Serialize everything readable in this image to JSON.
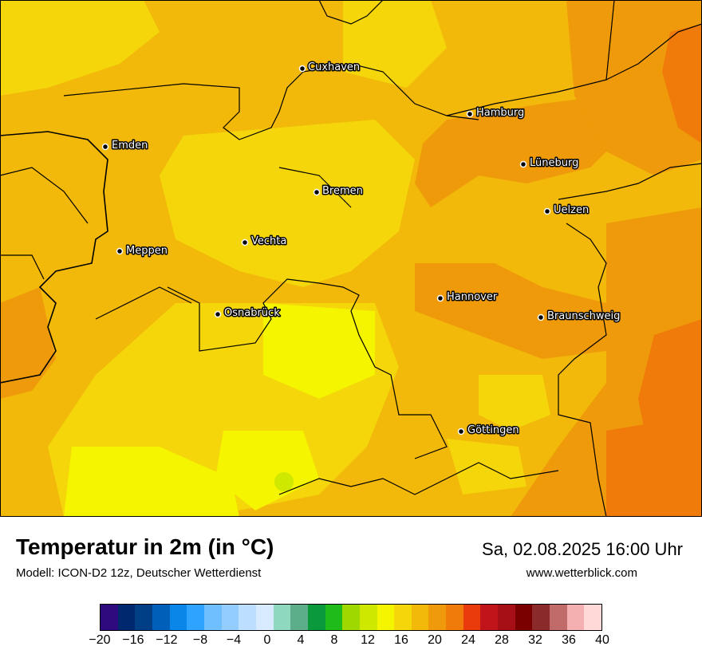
{
  "map": {
    "cities": [
      {
        "name": "Cuxhaven"
      },
      {
        "name": "Hamburg"
      },
      {
        "name": "Emden"
      },
      {
        "name": "Lüneburg"
      },
      {
        "name": "Bremen"
      },
      {
        "name": "Uelzen"
      },
      {
        "name": "Vechta"
      },
      {
        "name": "Meppen"
      },
      {
        "name": "Hannover"
      },
      {
        "name": "Osnabrück"
      },
      {
        "name": "Braunschweig"
      },
      {
        "name": "Göttingen"
      }
    ]
  },
  "footer": {
    "title": "Temperatur in 2m (in °C)",
    "model": "Modell: ICON-D2 12z, Deutscher Wetterdienst",
    "datetime": "Sa, 02.08.2025 16:00 Uhr",
    "website": "www.wetterblick.com"
  },
  "legend": {
    "colors": [
      "#2e0a7e",
      "#00286e",
      "#003f86",
      "#005fb8",
      "#0a86e8",
      "#2ea3ff",
      "#6fbfff",
      "#93cdff",
      "#bcdeff",
      "#d8eaff",
      "#8fd8c0",
      "#5cae8a",
      "#0a9a3c",
      "#1fbb1a",
      "#9fd800",
      "#cfe800",
      "#f5f500",
      "#f4d60a",
      "#f2b80a",
      "#ef9a0a",
      "#f07a0a",
      "#e83a0a",
      "#c0141a",
      "#a50f15",
      "#7a0000",
      "#8a2a2a",
      "#c06a6a",
      "#f4b0b0",
      "#ffd8d8"
    ],
    "ticks": [
      "−20",
      "−16",
      "−12",
      "−8",
      "−4",
      "0",
      "4",
      "8",
      "12",
      "16",
      "20",
      "24",
      "28",
      "32",
      "36",
      "40"
    ]
  }
}
